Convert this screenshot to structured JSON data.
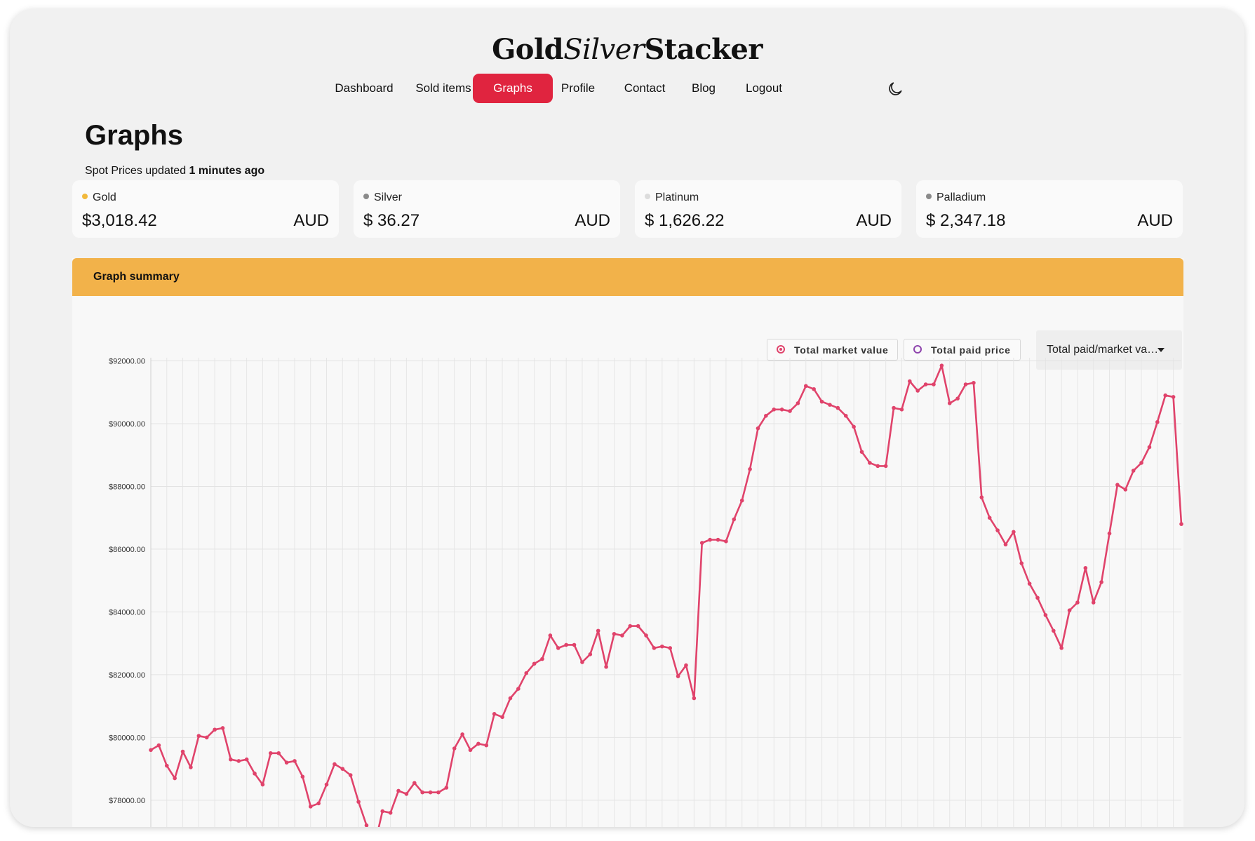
{
  "brand": {
    "part1": "Gold",
    "part2": "Silver",
    "part3": "Stacker"
  },
  "nav": {
    "items": [
      "Dashboard",
      "Sold items",
      "Graphs",
      "Profile",
      "Contact",
      "Blog",
      "Logout"
    ],
    "active": "Graphs",
    "theme_toggle_icon": "moon-icon"
  },
  "page": {
    "title": "Graphs",
    "updated_prefix": "Spot Prices updated",
    "updated_value": "1 minutes ago"
  },
  "spot_prices": [
    {
      "metal": "Gold",
      "price": "$3,018.42",
      "currency": "AUD",
      "dot_color": "#f2b93b"
    },
    {
      "metal": "Silver",
      "price": "$ 36.27",
      "currency": "AUD",
      "dot_color": "#8a8a8a"
    },
    {
      "metal": "Platinum",
      "price": "$ 1,626.22",
      "currency": "AUD",
      "dot_color": "#dcdcdc"
    },
    {
      "metal": "Palladium",
      "price": "$ 2,347.18",
      "currency": "AUD",
      "dot_color": "#8a8a8a"
    }
  ],
  "panel": {
    "title": "Graph summary",
    "legend": [
      "Total market value",
      "Total paid price"
    ],
    "select_value": "Total paid/market va…",
    "header_color": "#f2b24a"
  },
  "chart_data": {
    "type": "line",
    "series": [
      {
        "name": "Total market value",
        "color": "#e0436b"
      }
    ],
    "ylim": [
      76500,
      92100
    ],
    "y_ticks": [
      "$92000.00",
      "$90000.00",
      "$88000.00",
      "$86000.00",
      "$84000.00",
      "$82000.00",
      "$80000.00",
      "$78000.00"
    ],
    "y_tick_values": [
      92000,
      90000,
      88000,
      86000,
      84000,
      82000,
      80000,
      78000
    ],
    "values": [
      79600,
      79750,
      79100,
      78700,
      79550,
      79050,
      80050,
      80000,
      80250,
      80300,
      79300,
      79250,
      79300,
      78850,
      78500,
      79500,
      79500,
      79200,
      79250,
      78750,
      77800,
      77900,
      78500,
      79150,
      79000,
      78800,
      77950,
      77200,
      76550,
      77650,
      77600,
      78300,
      78200,
      78550,
      78250,
      78250,
      78250,
      78400,
      79650,
      80100,
      79600,
      79800,
      79750,
      80750,
      80650,
      81250,
      81550,
      82050,
      82350,
      82500,
      83250,
      82850,
      82950,
      82950,
      82400,
      82650,
      83400,
      82250,
      83300,
      83250,
      83550,
      83550,
      83250,
      82850,
      82900,
      82850,
      81950,
      82300,
      81250,
      86200,
      86300,
      86300,
      86250,
      86950,
      87550,
      88550,
      89850,
      90250,
      90450,
      90450,
      90400,
      90650,
      91200,
      91100,
      90700,
      90600,
      90500,
      90250,
      89900,
      89100,
      88750,
      88650,
      88650,
      90500,
      90450,
      91350,
      91050,
      91250,
      91250,
      91850,
      90650,
      90800,
      91250,
      91300,
      87650,
      87000,
      86600,
      86150,
      86550,
      85550,
      84900,
      84450,
      83900,
      83400,
      82850,
      84050,
      84300,
      85400,
      84300,
      84950,
      86500,
      88050,
      87900,
      88500,
      88750,
      89250,
      90050,
      90900,
      90850,
      86800
    ]
  }
}
